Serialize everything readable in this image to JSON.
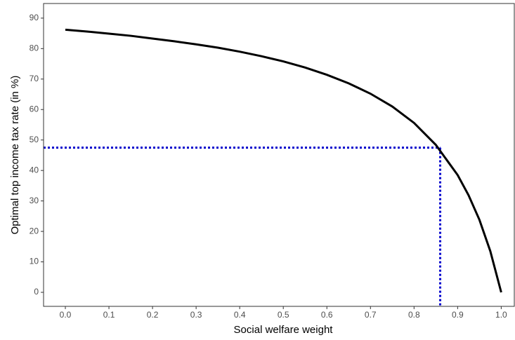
{
  "chart_data": {
    "type": "line",
    "xlabel": "Social welfare weight",
    "ylabel": "Optimal top income tax rate (in %)",
    "x": [
      0,
      0.05,
      0.1,
      0.15,
      0.2,
      0.25,
      0.3,
      0.35,
      0.4,
      0.45,
      0.5,
      0.55,
      0.6,
      0.65,
      0.7,
      0.75,
      0.8,
      0.85,
      0.9,
      0.925,
      0.95,
      0.975,
      1.0
    ],
    "series": [
      {
        "color": "#000000",
        "values": [
          86.2,
          85.6,
          84.9,
          84.2,
          83.3,
          82.4,
          81.4,
          80.3,
          79.0,
          77.5,
          75.8,
          73.8,
          71.4,
          68.6,
          65.2,
          61.0,
          55.6,
          48.4,
          38.5,
          31.9,
          23.8,
          13.5,
          0
        ]
      }
    ],
    "reference": {
      "x": 0.86,
      "y": 47.5,
      "color": "#0000cc"
    },
    "xlim": [
      -0.05,
      1.03
    ],
    "ylim": [
      -4.6,
      94.8
    ],
    "xticks": [
      {
        "value": 0,
        "label": "0.0"
      },
      0.1,
      0.2,
      0.3,
      0.4,
      0.5,
      0.6,
      0.7,
      0.8,
      0.9,
      {
        "value": 1,
        "label": "1.0"
      }
    ],
    "yticks": [
      0,
      10,
      20,
      30,
      40,
      50,
      60,
      70,
      80,
      90
    ]
  }
}
